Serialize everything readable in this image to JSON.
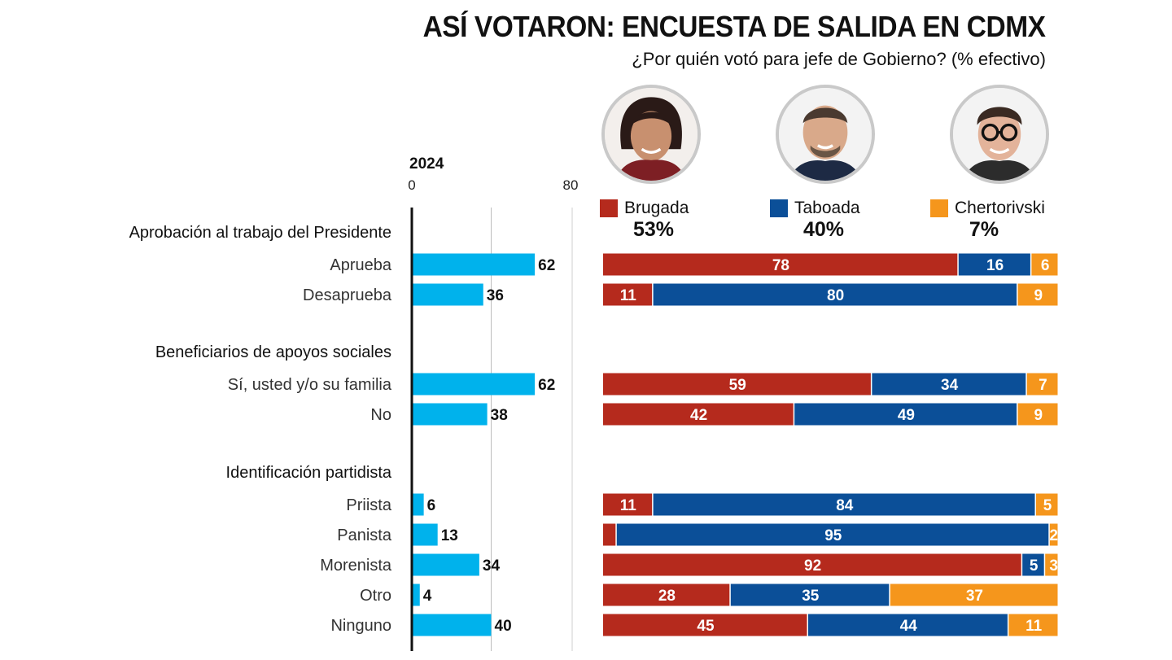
{
  "header": {
    "title": "ASÍ VOTARON: ENCUESTA DE SALIDA EN CDMX",
    "subtitle": "¿Por quién votó para jefe de Gobierno? (% efectivo)"
  },
  "candidates": [
    {
      "name": "Brugada",
      "percent_label": "53%",
      "percent": 53,
      "color": "#b52a1d",
      "photo": "woman-portrait"
    },
    {
      "name": "Taboada",
      "percent_label": "40%",
      "percent": 40,
      "color": "#0b4f98",
      "photo": "bald-man-portrait"
    },
    {
      "name": "Chertorivski",
      "percent_label": "7%",
      "percent": 7,
      "color": "#f5961c",
      "photo": "man-glasses-portrait"
    }
  ],
  "chart_data": [
    {
      "type": "bar",
      "title": "2024",
      "xlim": [
        0,
        80
      ],
      "tick_labels": [
        "0",
        "80"
      ],
      "color": "#00b2ec",
      "groups": [
        {
          "label": "Aprobación al trabajo del Presidente",
          "rows": [
            {
              "label": "Aprueba",
              "value": 62
            },
            {
              "label": "Desaprueba",
              "value": 36
            }
          ]
        },
        {
          "label": "Beneficiarios de apoyos sociales",
          "rows": [
            {
              "label": "Sí, usted y/o su familia",
              "value": 62
            },
            {
              "label": "No",
              "value": 38
            }
          ]
        },
        {
          "label": "Identificación partidista",
          "rows": [
            {
              "label": "Priista",
              "value": 6
            },
            {
              "label": "Panista",
              "value": 13
            },
            {
              "label": "Morenista",
              "value": 34
            },
            {
              "label": "Otro",
              "value": 4
            },
            {
              "label": "Ninguno",
              "value": 40
            }
          ]
        }
      ]
    },
    {
      "type": "bar",
      "stacked": true,
      "series": [
        {
          "name": "Brugada",
          "values": [
            78,
            11,
            59,
            42,
            11,
            3,
            92,
            28,
            45
          ]
        },
        {
          "name": "Taboada",
          "values": [
            16,
            80,
            34,
            49,
            84,
            95,
            5,
            35,
            44
          ]
        },
        {
          "name": "Chertorivski",
          "values": [
            6,
            9,
            7,
            9,
            5,
            2,
            3,
            37,
            11
          ]
        }
      ],
      "value_labels": [
        [
          "78",
          "16",
          "6"
        ],
        [
          "11",
          "80",
          "9"
        ],
        [
          "59",
          "34",
          "7"
        ],
        [
          "42",
          "49",
          "9"
        ],
        [
          "11",
          "84",
          "5"
        ],
        [
          "",
          "95",
          "2"
        ],
        [
          "92",
          "5",
          "3"
        ],
        [
          "28",
          "35",
          "37"
        ],
        [
          "45",
          "44",
          "11"
        ]
      ]
    }
  ]
}
